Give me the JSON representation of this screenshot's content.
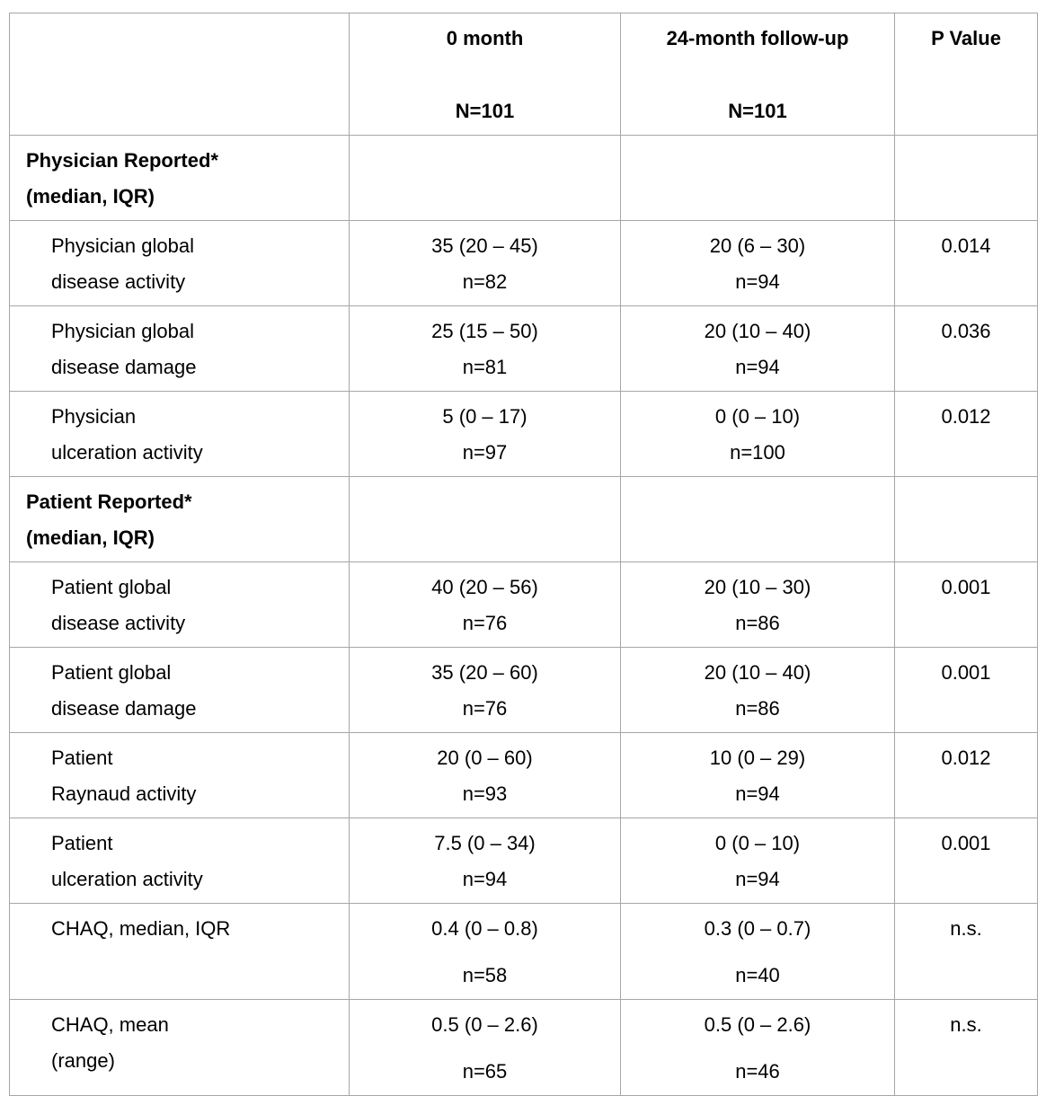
{
  "colors": {
    "background": "#ffffff",
    "text": "#000000",
    "border": "#a6a6a6"
  },
  "table": {
    "header": {
      "col1": "",
      "col2_line1": "0 month",
      "col2_line2": "N=101",
      "col3_line1": "24-month follow-up",
      "col3_line2": "N=101",
      "col4": "P Value"
    },
    "rows": [
      {
        "kind": "section",
        "label1": "Physician Reported*",
        "label2": "(median, IQR)"
      },
      {
        "kind": "data",
        "label1": "Physician global",
        "label2": "disease activity",
        "v0": "35 (20 – 45)",
        "n0": "n=82",
        "v24": "20 (6 – 30)",
        "n24": "n=94",
        "p": "0.014"
      },
      {
        "kind": "data",
        "label1": "Physician global",
        "label2": "disease damage",
        "v0": "25 (15 – 50)",
        "n0": "n=81",
        "v24": "20 (10 – 40)",
        "n24": "n=94",
        "p": "0.036"
      },
      {
        "kind": "data",
        "label1": "Physician",
        "label2": "ulceration activity",
        "v0": "5 (0 – 17)",
        "n0": "n=97",
        "v24": "0 (0 – 10)",
        "n24": "n=100",
        "p": "0.012"
      },
      {
        "kind": "section",
        "label1": "Patient Reported*",
        "label2": "(median, IQR)"
      },
      {
        "kind": "data",
        "label1": "Patient global",
        "label2": "disease activity",
        "v0": "40 (20 – 56)",
        "n0": "n=76",
        "v24": "20 (10 – 30)",
        "n24": "n=86",
        "p": "0.001"
      },
      {
        "kind": "data",
        "label1": "Patient global",
        "label2": "disease damage",
        "v0": "35 (20 – 60)",
        "n0": "n=76",
        "v24": "20 (10 – 40)",
        "n24": "n=86",
        "p": "0.001"
      },
      {
        "kind": "data",
        "label1": "Patient",
        "label2": "Raynaud activity",
        "v0": "20 (0 – 60)",
        "n0": "n=93",
        "v24": "10 (0 – 29)",
        "n24": "n=94",
        "p": "0.012"
      },
      {
        "kind": "data",
        "label1": "Patient",
        "label2": "ulceration activity",
        "v0": "7.5 (0 – 34)",
        "n0": "n=94",
        "v24": "0 (0 – 10)",
        "n24": "n=94",
        "p": "0.001"
      },
      {
        "kind": "data",
        "label1": "CHAQ, median, IQR",
        "label2": "",
        "v0": "0.4 (0 – 0.8)",
        "n0": "n=58",
        "v24": "0.3 (0 – 0.7)",
        "n24": "n=40",
        "p": "n.s."
      },
      {
        "kind": "data",
        "label1": "CHAQ, mean",
        "label2": "(range)",
        "v0": "0.5 (0 – 2.6)",
        "n0": "n=65",
        "v24": "0.5 (0 – 2.6)",
        "n24": "n=46",
        "p": "n.s."
      }
    ]
  }
}
